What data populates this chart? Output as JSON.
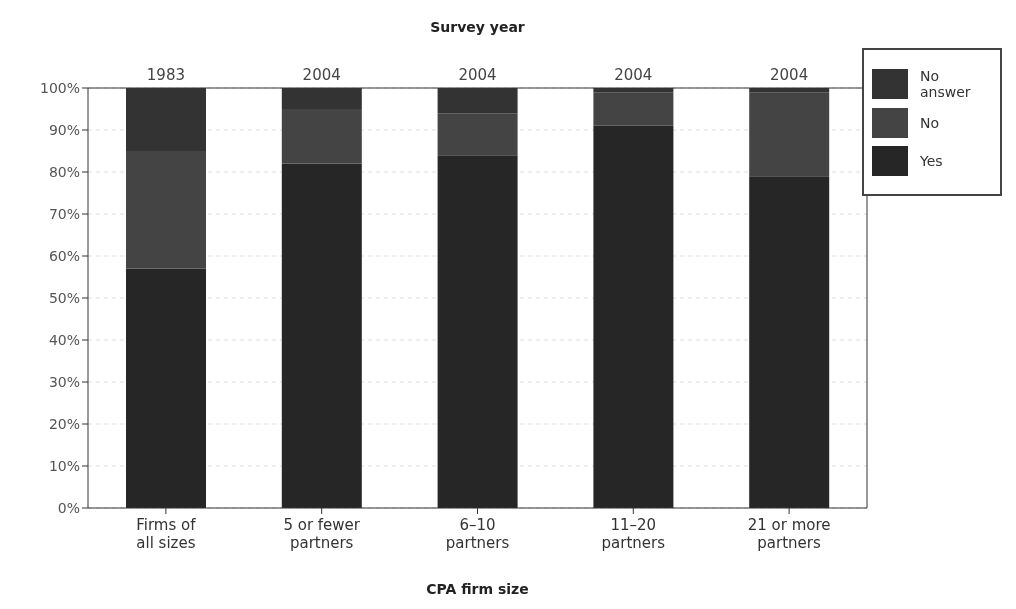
{
  "chart_data": {
    "type": "bar",
    "stacked": true,
    "xlabel": "CPA firm size",
    "x2label": "Survey year",
    "categories": [
      "Firms of all sizes",
      "5 or fewer partners",
      "6–10 partners",
      "11–20 partners",
      "21 or more partners"
    ],
    "series": [
      {
        "name": "Yes",
        "color": "#262626",
        "values": [
          57,
          82,
          84,
          91,
          79
        ]
      },
      {
        "name": "No",
        "color": "#444444",
        "values": [
          28,
          13,
          10,
          8,
          20
        ]
      },
      {
        "name": "No answer",
        "color": "#333333",
        "values": [
          15,
          5,
          6,
          1,
          1
        ]
      }
    ],
    "annotations": [
      "1983",
      "2004",
      "2004",
      "2004",
      "2004"
    ],
    "ylim": [
      0,
      100
    ],
    "yticks": [
      {
        "value": 0,
        "label": "0%"
      },
      {
        "value": 10,
        "label": "10%"
      },
      {
        "value": 20,
        "label": "20%"
      },
      {
        "value": 30,
        "label": "30%"
      },
      {
        "value": 40,
        "label": "40%"
      },
      {
        "value": 50,
        "label": "50%"
      },
      {
        "value": 60,
        "label": "60%"
      },
      {
        "value": 70,
        "label": "70%"
      },
      {
        "value": 80,
        "label": "80%"
      },
      {
        "value": 90,
        "label": "90%"
      },
      {
        "value": 100,
        "label": "100%"
      }
    ],
    "grid": "y",
    "legend": "top right"
  }
}
